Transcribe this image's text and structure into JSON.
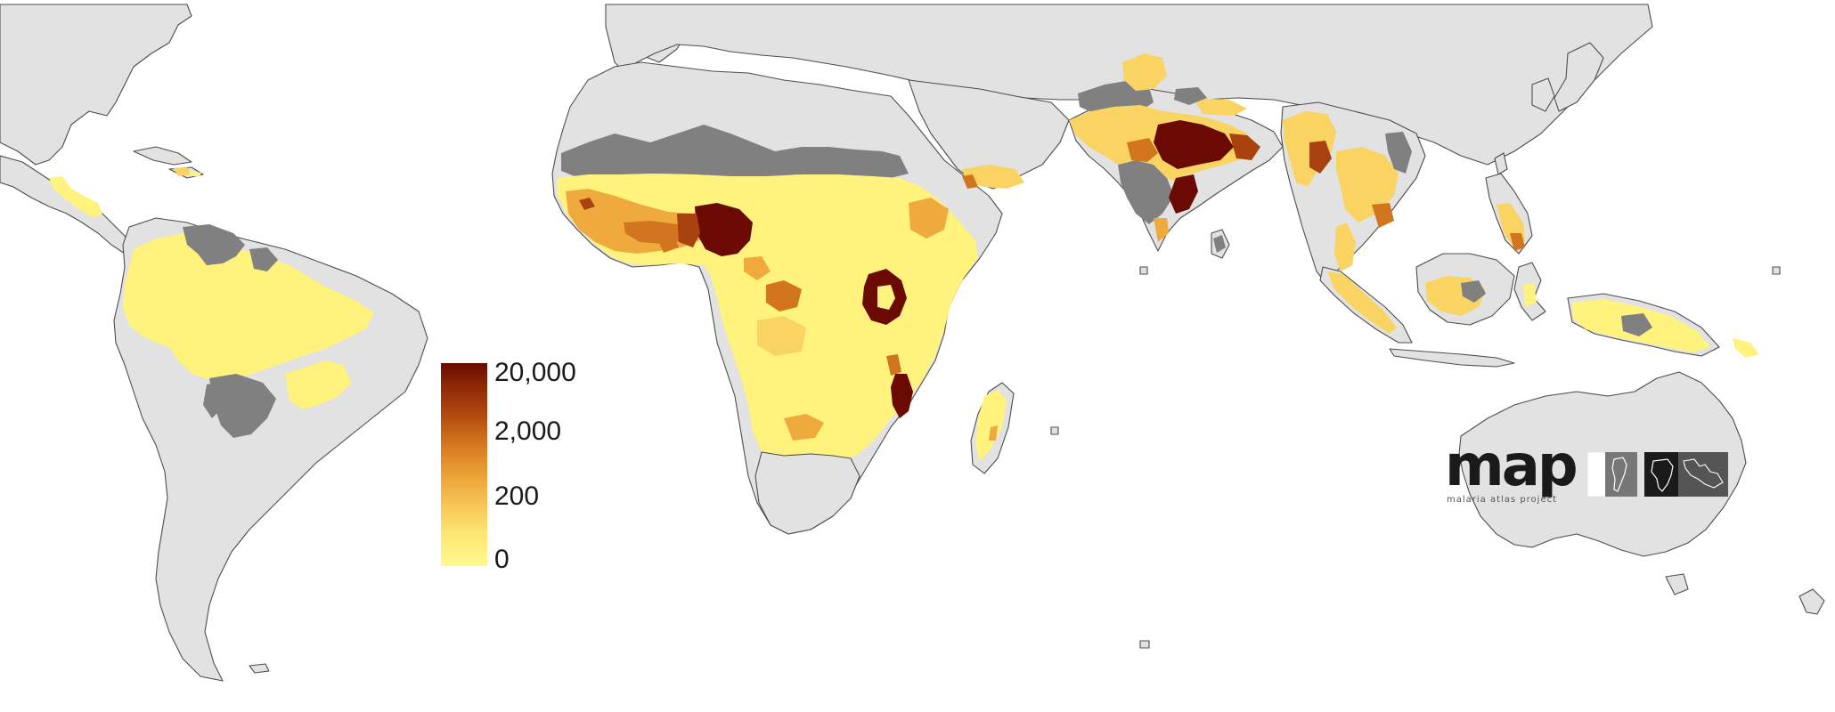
{
  "map": {
    "legend": {
      "labels": [
        "20,000",
        "2,000",
        "200",
        "0"
      ],
      "colors": [
        "#680b01",
        "#b24c10",
        "#eca136",
        "#fde875",
        "#fff88f"
      ],
      "no_data_color": "#808080",
      "land_color": "#e2e2e2"
    },
    "logo": {
      "wordmark": "map",
      "subtitle": "malaria atlas project"
    }
  }
}
